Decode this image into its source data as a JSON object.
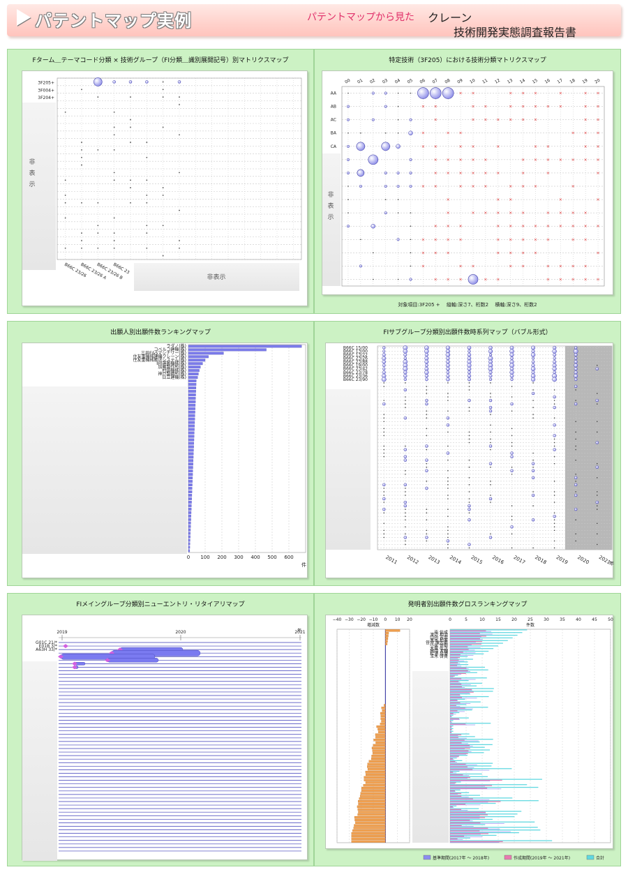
{
  "header": {
    "title": "パテントマップ実例",
    "subtitle_pink": "パテントマップから見た",
    "subtitle_topic": "クレーン",
    "subtitle_report": "技術開発実態調査報告書"
  },
  "hidden_label": "非表示",
  "panels": {
    "p1": {
      "title": "Fターム＿テーマコード分類 × 技術グループ（FI分類＿識別展開記号）別マトリクスマップ",
      "row_labels": [
        "3F205+",
        "3F004+",
        "3F204+"
      ],
      "hidden_side": "非表示",
      "col_labels": [
        "B66C 23/26",
        "B66C 23/26 A",
        "B66C 23/26 B",
        "B66C 23"
      ],
      "hidden_bottom": "非表示"
    },
    "p2": {
      "title": "特定技術（3F205）における技術分類マトリクスマップ",
      "col_labels": [
        "00",
        "01",
        "02",
        "03",
        "04",
        "05",
        "06",
        "07",
        "08",
        "09",
        "10",
        "11",
        "12",
        "13",
        "14",
        "15",
        "16",
        "17",
        "18",
        "19",
        "20"
      ],
      "row_labels": [
        "AA",
        "AB",
        "AC",
        "BA",
        "CA"
      ],
      "hidden_side": "非表示",
      "footnote": "対象項目:3F205 +　 縦軸:深さ7、桁数2　 横軸:深さ9、桁数2"
    },
    "p3": {
      "title": "出願人別出願件数ランキングマップ",
      "names": [
        "ラダノ(株)",
        "コベルコ建機(株)",
        "三井E&Sマシナリー(株)",
        "住友重機械建機クレーン(株)",
        "住友重機械搬送システム(株)",
        "IHI運搬機械(株)",
        "加藤製作所(株)",
        "村田機械(株)",
        "神戸製鋼所(株)",
        "日立建機(株)"
      ],
      "x_ticks": [
        "0",
        "100",
        "200",
        "300",
        "400",
        "500",
        "600"
      ],
      "x_unit": "件",
      "values": [
        676,
        465,
        210,
        120,
        100,
        85,
        72,
        65,
        60,
        55
      ]
    },
    "p4": {
      "title": "FIサブグループ分類別出願件数時系列マップ（バブル形式）",
      "row_labels": [
        "B66C 15/00",
        "B66C 13/00",
        "B66C 13/22",
        "B66C 23/26",
        "B66C 23/88",
        "B66C 19/00",
        "B66C 23/42",
        "B66C 23/78",
        "B66C 23/36",
        "B66C 23/90"
      ],
      "years": [
        "2011",
        "2012",
        "2013",
        "2014",
        "2015",
        "2016",
        "2017",
        "2018",
        "2019",
        "2020",
        "2021"
      ],
      "x_unit": "年"
    },
    "p5": {
      "title": "FIメイングループ分類別ニューエントリ・リタイアリマップ",
      "row_labels": [
        "G01C 21/",
        "E01B 3/",
        "A63H 33/"
      ],
      "x_ticks": [
        "2019",
        "2020",
        "2021"
      ],
      "x_unit": "年"
    },
    "p6": {
      "title": "発明者別出願件数グロスランキングマップ",
      "left_axis_label": "増減数",
      "left_ticks": [
        "−40",
        "−30",
        "−20",
        "−10",
        "0",
        "10",
        "20"
      ],
      "right_axis_label": "件数",
      "right_ticks": [
        "0",
        "5",
        "10",
        "15",
        "20",
        "25",
        "30",
        "35",
        "40",
        "45",
        "50"
      ],
      "names": [
        "南 信成",
        "渡辺 和治",
        "山内 吉崇",
        "木本 和憲",
        "笹井 徹志郎",
        "小矢 佳樹",
        "大塚 弘之",
        "高岡 大輔",
        "松浦 昌博",
        "玉木 啓貴"
      ],
      "legend": [
        "基準期間(2017年 ～ 2018年)",
        "作成期間(2019年 ～ 2021年)",
        "合計"
      ],
      "colors": {
        "base": "#8c8cf0",
        "period": "#e87ab0",
        "total": "#5fd8e0"
      }
    }
  }
}
